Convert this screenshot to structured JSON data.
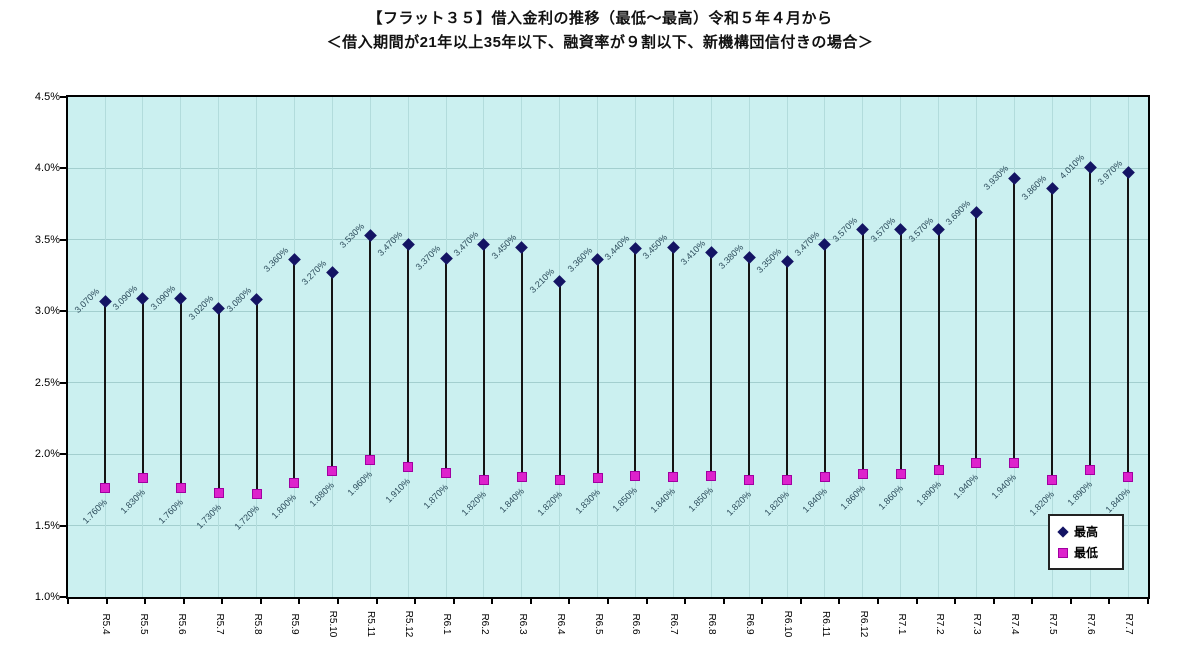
{
  "title": {
    "line1": "【フラット３５】借入金利の推移（最低～最高）令和５年４月から",
    "line2": "＜借入期間が21年以上35年以下、融資率が９割以下、新機構団信付きの場合＞"
  },
  "legend": {
    "high_label": "最高",
    "low_label": "最低",
    "position": "bottom-right"
  },
  "colors": {
    "plot_background": "#cbf0f0",
    "grid_horizontal": "#a3cfcf",
    "grid_vertical": "#b2dcdc",
    "high_marker": "#141464",
    "low_marker": "#dd22cc",
    "low_marker_border": "#a100a1",
    "hilo_line": "#141414",
    "data_label_text": "#2b4a5a",
    "axis_text": "#000000",
    "plot_border": "#000000"
  },
  "y_axis": {
    "tick_labels": [
      "4.5%",
      "4.0%",
      "3.5%",
      "3.0%",
      "2.5%",
      "2.0%",
      "1.5%",
      "1.0%"
    ],
    "min": 1.0,
    "max": 4.5,
    "step": 0.5
  },
  "chart_data": {
    "type": "scatter",
    "variant": "high-low",
    "title": "【フラット３５】借入金利の推移（最低～最高）令和５年４月から",
    "subtitle": "＜借入期間が21年以上35年以下、融資率が９割以下、新機構団信付きの場合＞",
    "xlabel": "",
    "ylabel": "",
    "ylim": [
      1.0,
      4.5
    ],
    "grid": true,
    "legend_position": "bottom-right",
    "value_label_decimals": 3,
    "value_label_suffix": "%",
    "categories": [
      "R5.4",
      "R5.5",
      "R5.6",
      "R5.7",
      "R5.8",
      "R5.9",
      "R5.10",
      "R5.11",
      "R5.12",
      "R6.1",
      "R6.2",
      "R6.3",
      "R6.4",
      "R6.5",
      "R6.6",
      "R6.7",
      "R6.8",
      "R6.9",
      "R6.10",
      "R6.11",
      "R6.12",
      "R7.1",
      "R7.2",
      "R7.3",
      "R7.4",
      "R7.5",
      "R7.6",
      "R7.7"
    ],
    "series": [
      {
        "name": "最高",
        "values": [
          3.07,
          3.09,
          3.09,
          3.02,
          3.08,
          3.36,
          3.27,
          3.53,
          3.47,
          3.37,
          3.47,
          3.45,
          3.21,
          3.36,
          3.44,
          3.45,
          3.41,
          3.38,
          3.35,
          3.47,
          3.57,
          3.57,
          3.57,
          3.69,
          3.93,
          3.86,
          4.01,
          3.97
        ]
      },
      {
        "name": "最低",
        "values": [
          1.76,
          1.83,
          1.76,
          1.73,
          1.72,
          1.8,
          1.88,
          1.96,
          1.91,
          1.87,
          1.82,
          1.84,
          1.82,
          1.83,
          1.85,
          1.84,
          1.85,
          1.82,
          1.82,
          1.84,
          1.86,
          1.86,
          1.89,
          1.94,
          1.94,
          1.82,
          1.89,
          1.84
        ]
      }
    ]
  },
  "layout_hints": {
    "x_labels_rotation": "vertical-90deg",
    "data_labels_rotation": "-45deg"
  }
}
